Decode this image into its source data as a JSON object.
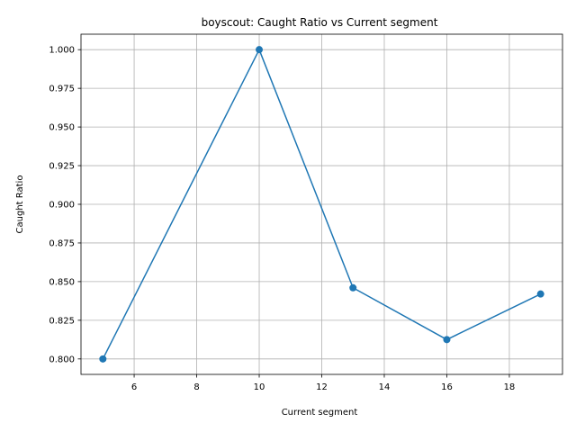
{
  "chart_data": {
    "type": "line",
    "title": "boyscout: Caught Ratio vs Current segment",
    "xlabel": "Current segment",
    "ylabel": "Caught Ratio",
    "xlim": [
      4.3,
      19.7
    ],
    "ylim": [
      0.79,
      1.01
    ],
    "xticks": [
      6,
      8,
      10,
      12,
      14,
      16,
      18
    ],
    "xtick_labels": [
      "6",
      "8",
      "10",
      "12",
      "14",
      "16",
      "18"
    ],
    "yticks": [
      0.8,
      0.825,
      0.85,
      0.875,
      0.9,
      0.925,
      0.95,
      0.975,
      1.0
    ],
    "ytick_labels": [
      "0.800",
      "0.825",
      "0.850",
      "0.875",
      "0.900",
      "0.925",
      "0.950",
      "0.975",
      "1.000"
    ],
    "grid": true,
    "series": [
      {
        "x": [
          5,
          10,
          13,
          16,
          19
        ],
        "y": [
          0.8,
          1.0,
          0.846,
          0.8125,
          0.842
        ],
        "color": "#1f77b4",
        "marker": "circle"
      }
    ]
  }
}
